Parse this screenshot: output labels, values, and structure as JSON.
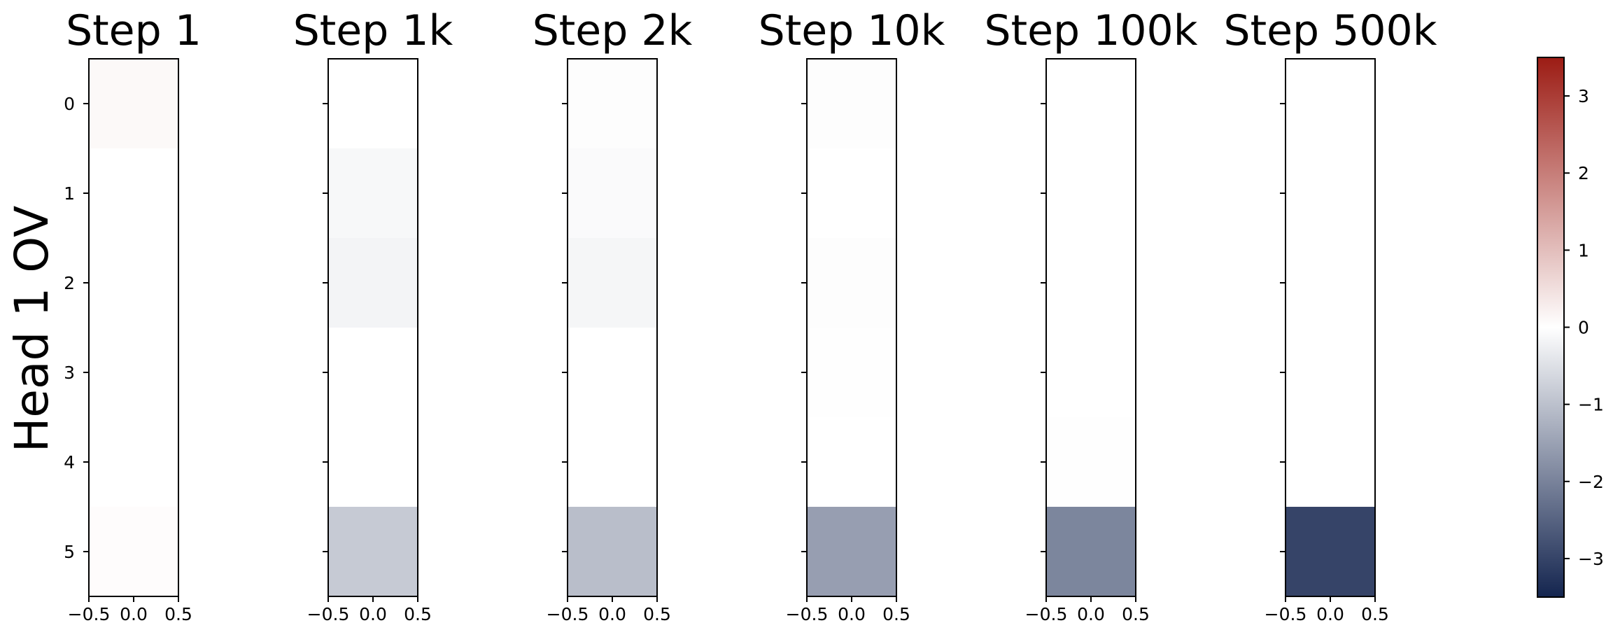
{
  "figure": {
    "row_label": "Head 1 OV"
  },
  "chart_data": {
    "type": "heatmap",
    "row_label": "Head 1 OV",
    "rows": [
      0,
      1,
      2,
      3,
      4,
      5
    ],
    "x_ticks": [
      "−0.5",
      "0.0",
      "0.5"
    ],
    "y_ticks": [
      "0",
      "1",
      "2",
      "3",
      "4",
      "5"
    ],
    "x_range": [
      -0.5,
      0.5
    ],
    "y_range": [
      -0.5,
      5.5
    ],
    "panels": [
      {
        "title": "Step 1",
        "values": [
          0.1,
          0.0,
          0.0,
          0.0,
          0.0,
          0.04
        ]
      },
      {
        "title": "Step 1k",
        "values": [
          0.0,
          -0.12,
          -0.18,
          0.0,
          0.0,
          -0.85
        ]
      },
      {
        "title": "Step 2k",
        "values": [
          -0.03,
          -0.08,
          -0.15,
          0.0,
          0.0,
          -1.05
        ]
      },
      {
        "title": "Step 10k",
        "values": [
          -0.03,
          0.0,
          -0.03,
          -0.02,
          0.0,
          -1.55
        ]
      },
      {
        "title": "Step 100k",
        "values": [
          0.0,
          0.0,
          0.0,
          0.0,
          -0.02,
          -1.95
        ]
      },
      {
        "title": "Step 500k",
        "values": [
          0.0,
          0.0,
          0.0,
          0.0,
          0.0,
          -3.0
        ]
      }
    ],
    "colorbar": {
      "range": [
        -3.5,
        3.5
      ],
      "ticks": [
        3,
        2,
        1,
        0,
        -1,
        -2,
        -3
      ],
      "tick_labels": [
        "3",
        "2",
        "1",
        "0",
        "−1",
        "−2",
        "−3"
      ],
      "colormap": "diverging",
      "neg_color": "#14254f",
      "mid_color": "#ffffff",
      "pos_color": "#9c1c14"
    },
    "grid": false
  }
}
